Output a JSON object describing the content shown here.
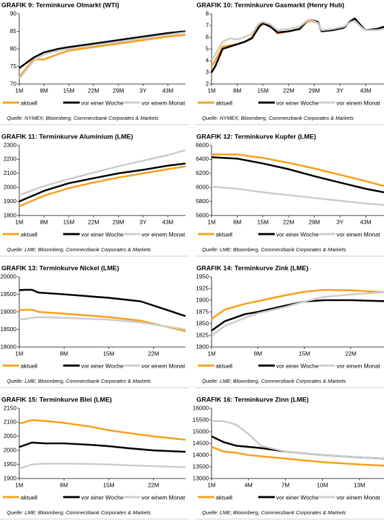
{
  "chart_data": [
    {
      "type": "line",
      "title": "GRAFIK 9: Terminkurve Olmarkt (WTI)",
      "source": "Quelle: NYMEX; Bloomberg, Commerzbank Corporates & Markets",
      "x": [
        1,
        3,
        5,
        8,
        12,
        15,
        22,
        29,
        36,
        43,
        48
      ],
      "xlim": [
        1,
        48
      ],
      "xticks": [
        {
          "value": 1,
          "label": "1M"
        },
        {
          "value": 8,
          "label": "8M"
        },
        {
          "value": 15,
          "label": "15M"
        },
        {
          "value": 22,
          "label": "22M"
        },
        {
          "value": 29,
          "label": "29M"
        },
        {
          "value": 36,
          "label": "3Y"
        },
        {
          "value": 43,
          "label": "43M"
        }
      ],
      "ylim": [
        70,
        90
      ],
      "yticks": [
        70,
        75,
        80,
        85,
        90
      ],
      "series": [
        {
          "name": "aktuell",
          "color": "#f7a11a",
          "values": [
            72,
            74.5,
            77,
            77,
            78.5,
            79.5,
            80.5,
            81.5,
            82.5,
            83.5,
            84
          ]
        },
        {
          "name": "vor einer Woche",
          "color": "#000000",
          "values": [
            74.5,
            76,
            77.5,
            79,
            80,
            80.5,
            81.5,
            82.5,
            83.5,
            84.5,
            85
          ]
        },
        {
          "name": "vor einem Monat",
          "color": "#cccccc",
          "values": [
            71.5,
            74,
            76.5,
            78.5,
            79.5,
            80,
            81,
            82,
            83,
            84,
            84.7
          ]
        }
      ]
    },
    {
      "type": "line",
      "title": "GRAFIK 10: Terminkurve Gasmarkt (Henry Hub)",
      "source": "Quelle: NYMEX; Bloomberg, Commerzbank Corporates & Markets",
      "x": [
        1,
        2,
        4,
        6,
        8,
        10,
        12,
        14,
        15,
        17,
        19,
        22,
        25,
        27,
        28,
        30,
        31,
        34,
        37,
        39,
        40,
        42,
        43,
        46,
        48
      ],
      "xlim": [
        1,
        48
      ],
      "xticks": [
        {
          "value": 1,
          "label": "1M"
        },
        {
          "value": 8,
          "label": "8M"
        },
        {
          "value": 15,
          "label": "15M"
        },
        {
          "value": 22,
          "label": "22M"
        },
        {
          "value": 29,
          "label": "29M"
        },
        {
          "value": 36,
          "label": "3Y"
        },
        {
          "value": 43,
          "label": "43M"
        }
      ],
      "ylim": [
        2,
        8
      ],
      "yticks": [
        2,
        3,
        4,
        5,
        6,
        7,
        8
      ],
      "series": [
        {
          "name": "aktuell",
          "color": "#f7a11a",
          "values": [
            3.5,
            4,
            5.2,
            5.3,
            5.4,
            5.6,
            6.0,
            7.0,
            7.1,
            7.0,
            6.3,
            6.5,
            6.7,
            7.3,
            7.4,
            7.2,
            6.5,
            6.6,
            6.8,
            7.4,
            7.5,
            6.8,
            6.6,
            6.7,
            6.8
          ]
        },
        {
          "name": "vor einer Woche",
          "color": "#000000",
          "values": [
            3.0,
            3.5,
            5.0,
            5.2,
            5.4,
            5.6,
            5.9,
            6.9,
            7.2,
            6.9,
            6.4,
            6.5,
            6.7,
            7.4,
            7.5,
            7.3,
            6.5,
            6.6,
            6.8,
            7.4,
            7.6,
            6.9,
            6.6,
            6.7,
            6.9
          ]
        },
        {
          "name": "vor einem Monat",
          "color": "#cccccc",
          "values": [
            4.0,
            4.5,
            5.6,
            5.9,
            5.8,
            6.0,
            6.3,
            7.2,
            7.3,
            7.1,
            6.6,
            6.7,
            6.9,
            7.4,
            7.5,
            7.2,
            6.6,
            6.7,
            6.9,
            7.3,
            7.4,
            6.8,
            6.6,
            6.6,
            6.7
          ]
        }
      ]
    },
    {
      "type": "line",
      "title": "GRAFIK 11: Terminkurve Aluminium (LME)",
      "source": "Quelle: LME; Bloomberg, Commerzbank Corporates & Markets",
      "x": [
        1,
        8,
        15,
        22,
        29,
        36,
        43,
        48
      ],
      "xlim": [
        1,
        48
      ],
      "xticks": [
        {
          "value": 1,
          "label": "1M"
        },
        {
          "value": 8,
          "label": "8M"
        },
        {
          "value": 15,
          "label": "15M"
        },
        {
          "value": 22,
          "label": "22M"
        },
        {
          "value": 29,
          "label": "29M"
        },
        {
          "value": 36,
          "label": "3Y"
        },
        {
          "value": 43,
          "label": "43M"
        }
      ],
      "ylim": [
        1800,
        2300
      ],
      "yticks": [
        1800,
        1900,
        2000,
        2100,
        2200,
        2300
      ],
      "series": [
        {
          "name": "aktuell",
          "color": "#f7a11a",
          "values": [
            1865,
            1940,
            1995,
            2035,
            2070,
            2100,
            2130,
            2150
          ]
        },
        {
          "name": "vor einer Woche",
          "color": "#000000",
          "values": [
            1900,
            1975,
            2030,
            2065,
            2100,
            2125,
            2155,
            2170
          ]
        },
        {
          "name": "vor einem Monat",
          "color": "#cccccc",
          "values": [
            1945,
            2010,
            2060,
            2105,
            2150,
            2190,
            2230,
            2265
          ]
        }
      ]
    },
    {
      "type": "line",
      "title": "GRAFIK 12: Terminkurve Kupfer (LME)",
      "source": "Quelle: LME; Bloomberg, Commerzbank Corporates & Markets",
      "x": [
        1,
        8,
        15,
        22,
        29,
        36,
        43,
        48
      ],
      "xlim": [
        1,
        48
      ],
      "xticks": [
        {
          "value": 1,
          "label": "1M"
        },
        {
          "value": 8,
          "label": "8M"
        },
        {
          "value": 15,
          "label": "15M"
        },
        {
          "value": 22,
          "label": "22M"
        },
        {
          "value": 29,
          "label": "29M"
        },
        {
          "value": 36,
          "label": "3Y"
        },
        {
          "value": 43,
          "label": "43M"
        }
      ],
      "ylim": [
        5600,
        6600
      ],
      "yticks": [
        5600,
        5800,
        6000,
        6200,
        6400,
        6600
      ],
      "series": [
        {
          "name": "aktuell",
          "color": "#f7a11a",
          "values": [
            6470,
            6470,
            6420,
            6350,
            6270,
            6180,
            6090,
            6020
          ]
        },
        {
          "name": "vor einer Woche",
          "color": "#000000",
          "values": [
            6430,
            6410,
            6340,
            6260,
            6160,
            6070,
            5980,
            5930
          ]
        },
        {
          "name": "vor einem Monat",
          "color": "#cccccc",
          "values": [
            6010,
            5980,
            5930,
            5890,
            5850,
            5810,
            5770,
            5750
          ]
        }
      ]
    },
    {
      "type": "line",
      "title": "GRAFIK 13: Terminkurve Nickel (LME)",
      "source": "Quelle: LME; Bloomberg, Commerzbank Corporates & Markets",
      "x": [
        1,
        2,
        3,
        4,
        8,
        15,
        20,
        27
      ],
      "xlim": [
        1,
        27
      ],
      "xticks": [
        {
          "value": 1,
          "label": "1M"
        },
        {
          "value": 8,
          "label": "8M"
        },
        {
          "value": 15,
          "label": "15M"
        },
        {
          "value": 22,
          "label": "22M"
        }
      ],
      "ylim": [
        18000,
        20000
      ],
      "yticks": [
        18000,
        18500,
        19000,
        19500,
        20000
      ],
      "series": [
        {
          "name": "aktuell",
          "color": "#f7a11a",
          "values": [
            19050,
            19060,
            19060,
            19000,
            18950,
            18850,
            18750,
            18450
          ]
        },
        {
          "name": "vor einer Woche",
          "color": "#000000",
          "values": [
            19620,
            19630,
            19630,
            19550,
            19500,
            19400,
            19300,
            18880
          ]
        },
        {
          "name": "vor einem Monat",
          "color": "#cccccc",
          "values": [
            18780,
            18800,
            18830,
            18850,
            18830,
            18780,
            18700,
            18500
          ]
        }
      ]
    },
    {
      "type": "line",
      "title": "GRAFIK 14: Terminkurve Zink (LME)",
      "source": "Quelle: LME; Bloomberg, Commerzbank Corporates & Markets",
      "x": [
        1,
        3,
        6,
        8,
        12,
        15,
        18,
        22,
        27
      ],
      "xlim": [
        1,
        27
      ],
      "xticks": [
        {
          "value": 1,
          "label": "1M"
        },
        {
          "value": 8,
          "label": "8M"
        },
        {
          "value": 15,
          "label": "15M"
        },
        {
          "value": 22,
          "label": "22M"
        }
      ],
      "ylim": [
        1800,
        1950
      ],
      "yticks": [
        1800,
        1825,
        1850,
        1875,
        1900,
        1925,
        1950
      ],
      "series": [
        {
          "name": "aktuell",
          "color": "#f7a11a",
          "values": [
            1860,
            1880,
            1892,
            1898,
            1910,
            1918,
            1922,
            1921,
            1917
          ]
        },
        {
          "name": "vor einer Woche",
          "color": "#000000",
          "values": [
            1835,
            1855,
            1870,
            1875,
            1888,
            1897,
            1900,
            1900,
            1898
          ]
        },
        {
          "name": "vor einem Monat",
          "color": "#cccccc",
          "values": [
            1825,
            1845,
            1862,
            1872,
            1885,
            1897,
            1907,
            1912,
            1917
          ]
        }
      ]
    },
    {
      "type": "line",
      "title": "GRAFIK 15: Terminkurve Blei (LME)",
      "source": "Quelle: LME; Bloomberg, Commerzbank Corporates & Markets",
      "x": [
        1,
        3,
        5,
        8,
        12,
        15,
        18,
        22,
        27
      ],
      "xlim": [
        1,
        27
      ],
      "xticks": [
        {
          "value": 1,
          "label": "1M"
        },
        {
          "value": 8,
          "label": "8M"
        },
        {
          "value": 15,
          "label": "15M"
        },
        {
          "value": 22,
          "label": "22M"
        }
      ],
      "ylim": [
        1900,
        2150
      ],
      "yticks": [
        1900,
        1950,
        2000,
        2050,
        2100,
        2150
      ],
      "series": [
        {
          "name": "aktuell",
          "color": "#f7a11a",
          "values": [
            2095,
            2108,
            2105,
            2098,
            2085,
            2072,
            2062,
            2050,
            2038
          ]
        },
        {
          "name": "vor einer Woche",
          "color": "#000000",
          "values": [
            2012,
            2028,
            2025,
            2025,
            2020,
            2015,
            2008,
            2000,
            1995
          ]
        },
        {
          "name": "vor einem Monat",
          "color": "#cccccc",
          "values": [
            1935,
            1950,
            1953,
            1953,
            1952,
            1950,
            1947,
            1944,
            1940
          ]
        }
      ]
    },
    {
      "type": "line",
      "title": "GRAFIK 16: Terminkurve Zinn (LME)",
      "source": "Quelle: LME; Bloomberg, Commerzbank Corporates & Markets",
      "x": [
        1,
        2,
        3,
        4,
        5,
        7,
        10,
        13,
        15
      ],
      "xlim": [
        1,
        15
      ],
      "xticks": [
        {
          "value": 1,
          "label": "1M"
        },
        {
          "value": 4,
          "label": "4M"
        },
        {
          "value": 7,
          "label": "7M"
        },
        {
          "value": 10,
          "label": "10M"
        },
        {
          "value": 13,
          "label": "13M"
        }
      ],
      "ylim": [
        13000,
        16000
      ],
      "yticks": [
        13000,
        13500,
        14000,
        14500,
        15000,
        15500,
        16000
      ],
      "series": [
        {
          "name": "aktuell",
          "color": "#f7a11a",
          "values": [
            14350,
            14150,
            14100,
            14000,
            13950,
            13850,
            13700,
            13600,
            13550
          ]
        },
        {
          "name": "vor einer Woche",
          "color": "#000000",
          "values": [
            14800,
            14550,
            14400,
            14350,
            14300,
            14150,
            14000,
            13900,
            13850
          ]
        },
        {
          "name": "vor einem Monat",
          "color": "#cccccc",
          "values": [
            15450,
            15450,
            15300,
            14900,
            14400,
            14150,
            14000,
            13900,
            13850
          ]
        }
      ]
    }
  ]
}
